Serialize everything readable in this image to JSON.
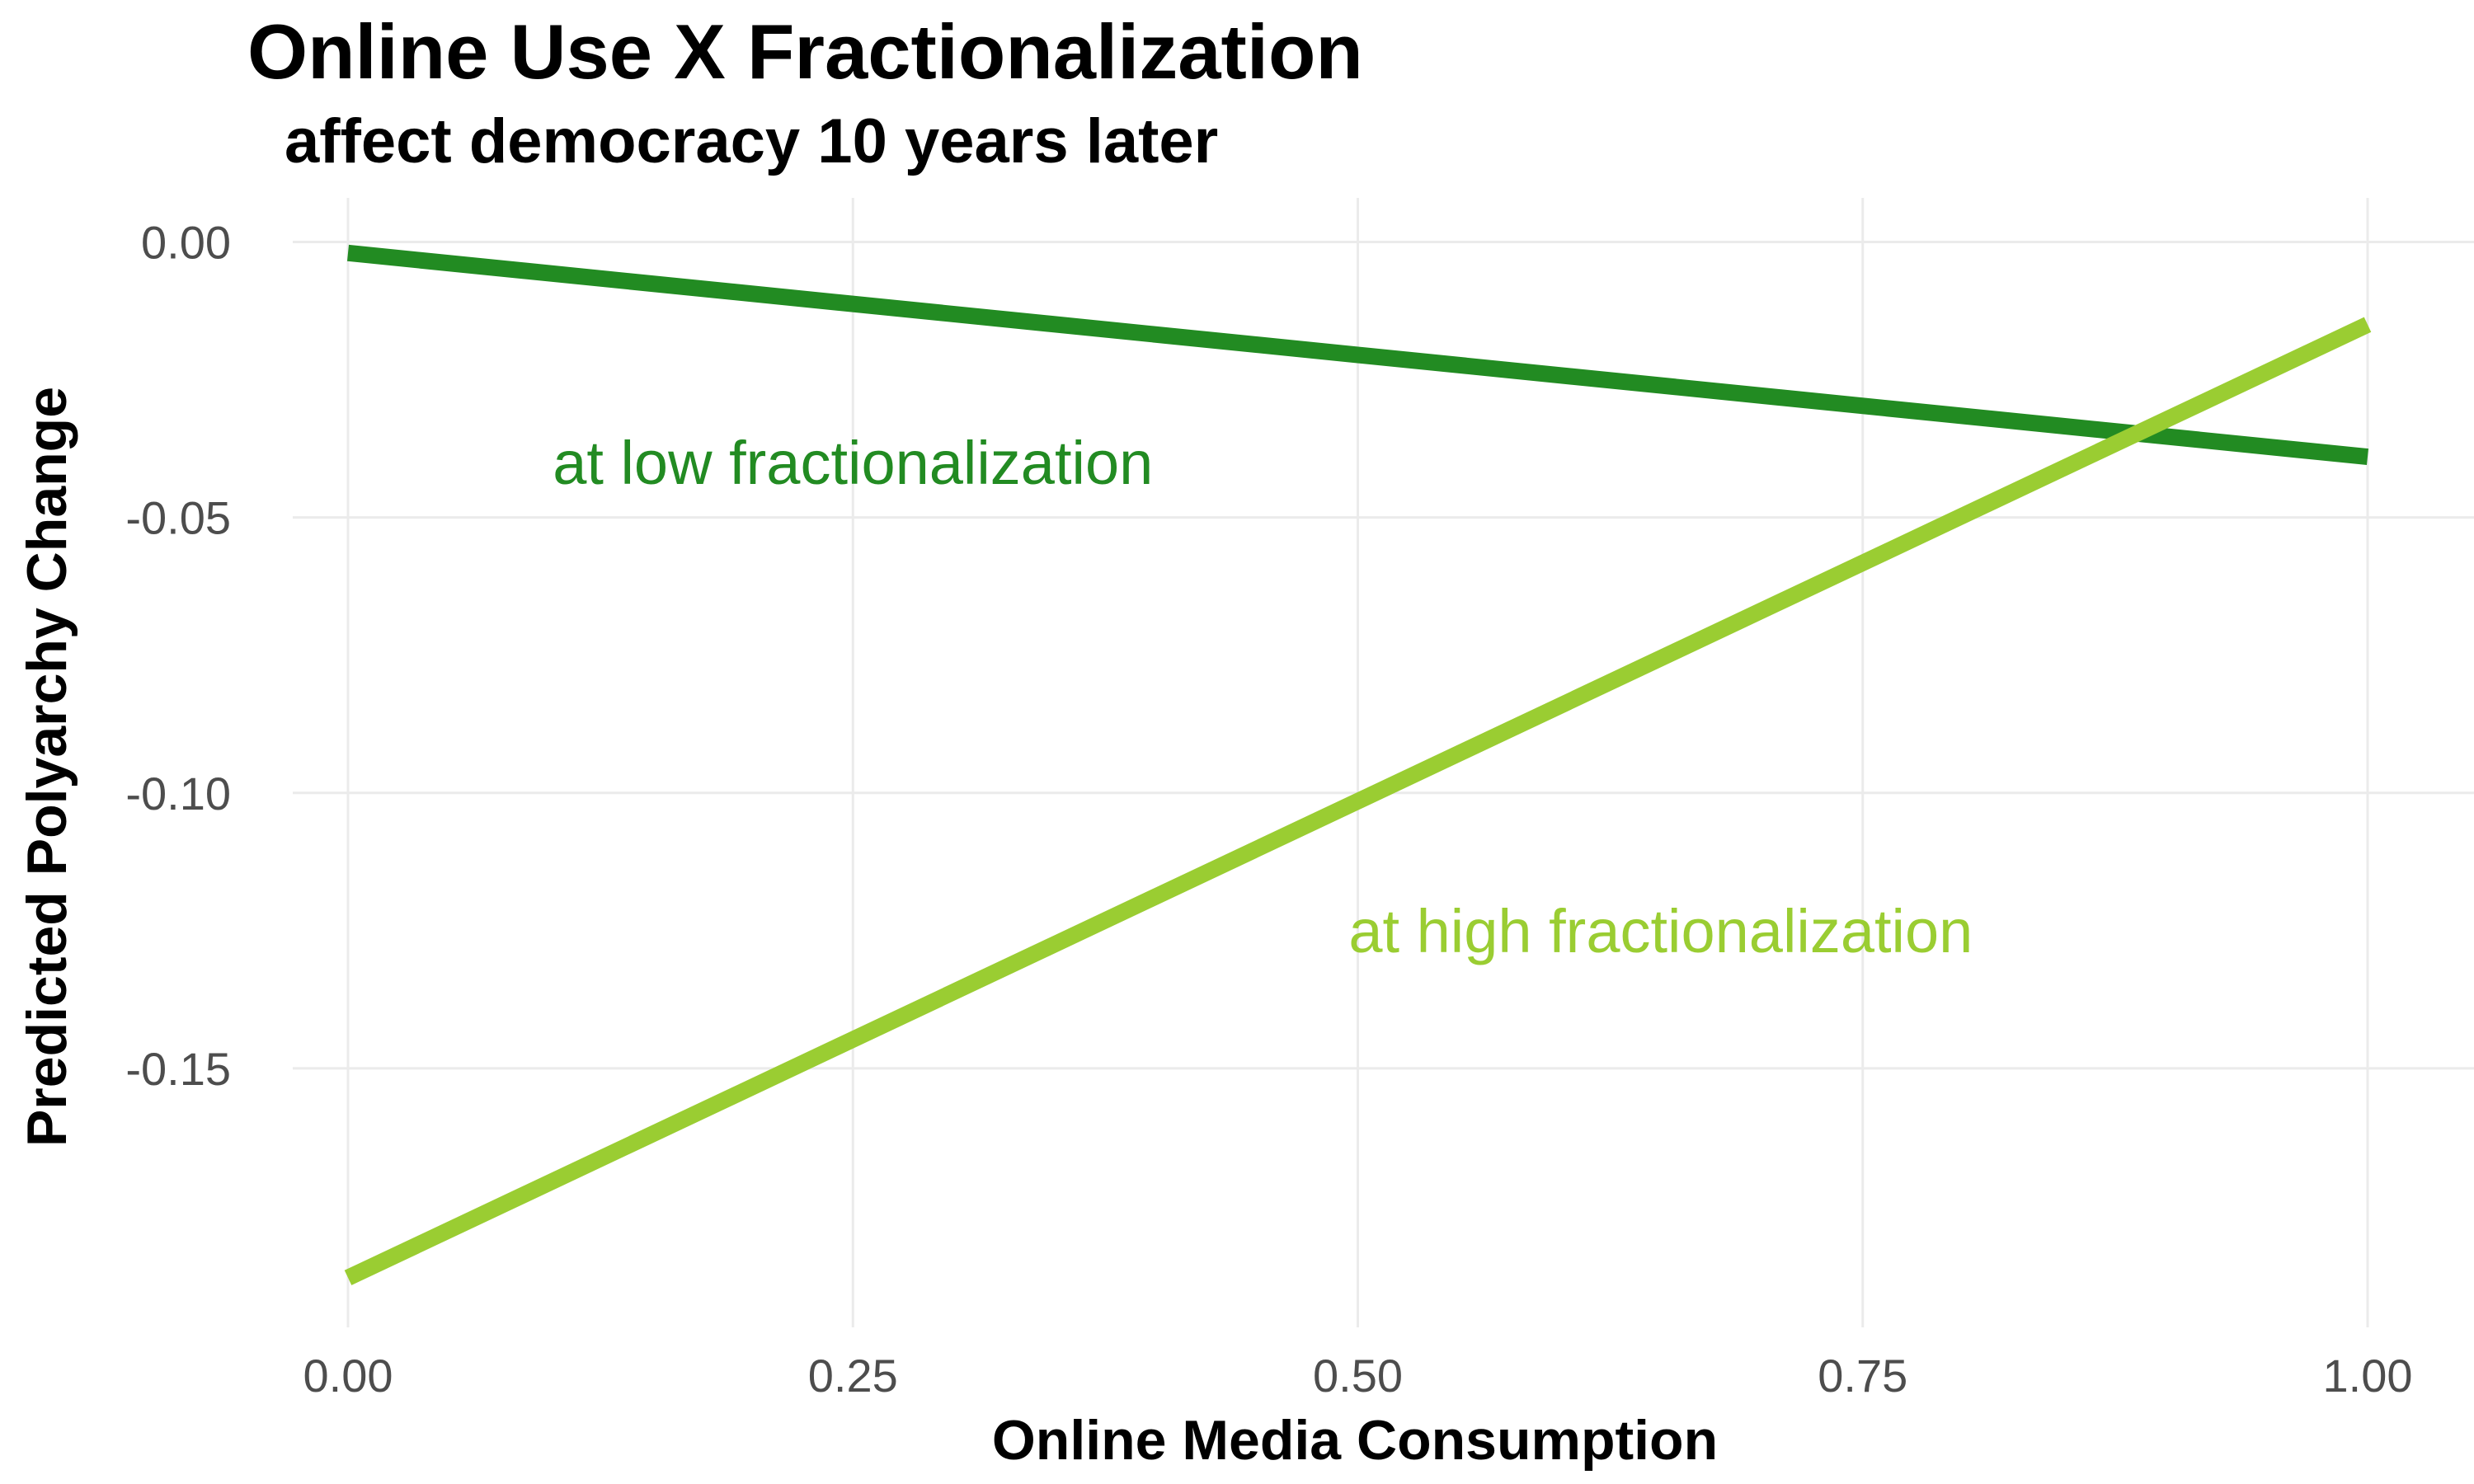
{
  "chart_data": {
    "type": "line",
    "title": "Online Use X Fractionalization",
    "subtitle": "affect democracy 10 years later",
    "xlabel": "Online Media Consumption",
    "ylabel": "Predicted Polyarchy Change",
    "xlim": [
      0,
      1
    ],
    "ylim": [
      -0.197,
      0.008
    ],
    "x_ticks": [
      0.0,
      0.25,
      0.5,
      0.75,
      1.0
    ],
    "x_tick_labels": [
      "0.00",
      "0.25",
      "0.50",
      "0.75",
      "1.00"
    ],
    "y_ticks": [
      0.0,
      -0.05,
      -0.1,
      -0.15
    ],
    "y_tick_labels": [
      "0.00",
      "-0.05",
      "-0.10",
      "-0.15"
    ],
    "grid": true,
    "legend": "none",
    "series": [
      {
        "name": "at low fractionalization",
        "color": "#228b22",
        "x": [
          0.0,
          1.0
        ],
        "values": [
          -0.002,
          -0.039
        ],
        "label_anchor": [
          0.25,
          -0.04
        ]
      },
      {
        "name": "at high fractionalization",
        "color": "#9acd32",
        "x": [
          0.0,
          1.0
        ],
        "values": [
          -0.188,
          -0.015
        ],
        "label_anchor": [
          0.65,
          -0.125
        ]
      }
    ]
  }
}
